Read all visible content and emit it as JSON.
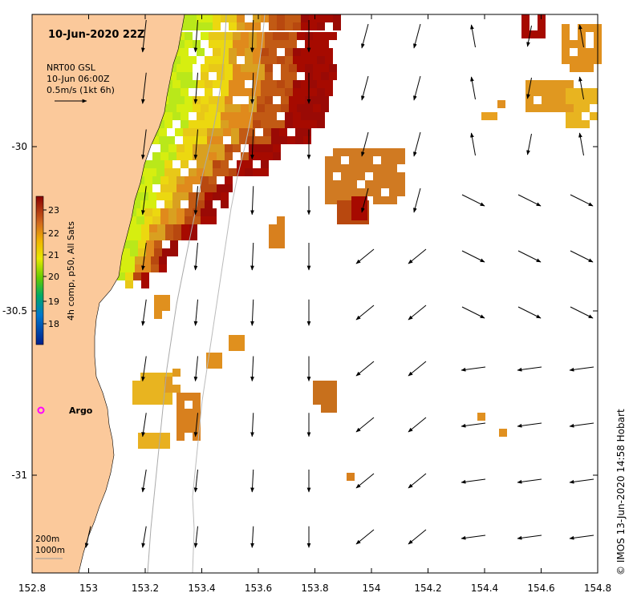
{
  "map": {
    "title": "10-Jun-2020 22Z",
    "current_legend": {
      "line1": "NRT00 GSL",
      "line2": "10-Jun 06:00Z",
      "line3": "0.5m/s (1kt 6h)"
    },
    "colorbar": {
      "label": "4h comp, p50, All Sats",
      "ticks": [
        "23",
        "22",
        "21",
        "20",
        "19",
        "18"
      ]
    },
    "station_label": "Argo",
    "depth_legend": {
      "line1": "200m",
      "line2": "1000m"
    },
    "credit": "© IMOS 13-Jun-2020 14:58 Hobart",
    "x_ticks": [
      "152.8",
      "153",
      "153.2",
      "153.4",
      "153.6",
      "153.8",
      "154",
      "154.2",
      "154.4",
      "154.6",
      "154.8"
    ],
    "y_ticks": [
      "-30",
      "-30.5",
      "-31"
    ],
    "colors": {
      "land": "#fbc99b",
      "hot": "#a60a00",
      "orange": "#d98a1a",
      "yellow": "#e9d816",
      "green": "#6ed200",
      "argo_marker": "#ff00ff"
    }
  }
}
